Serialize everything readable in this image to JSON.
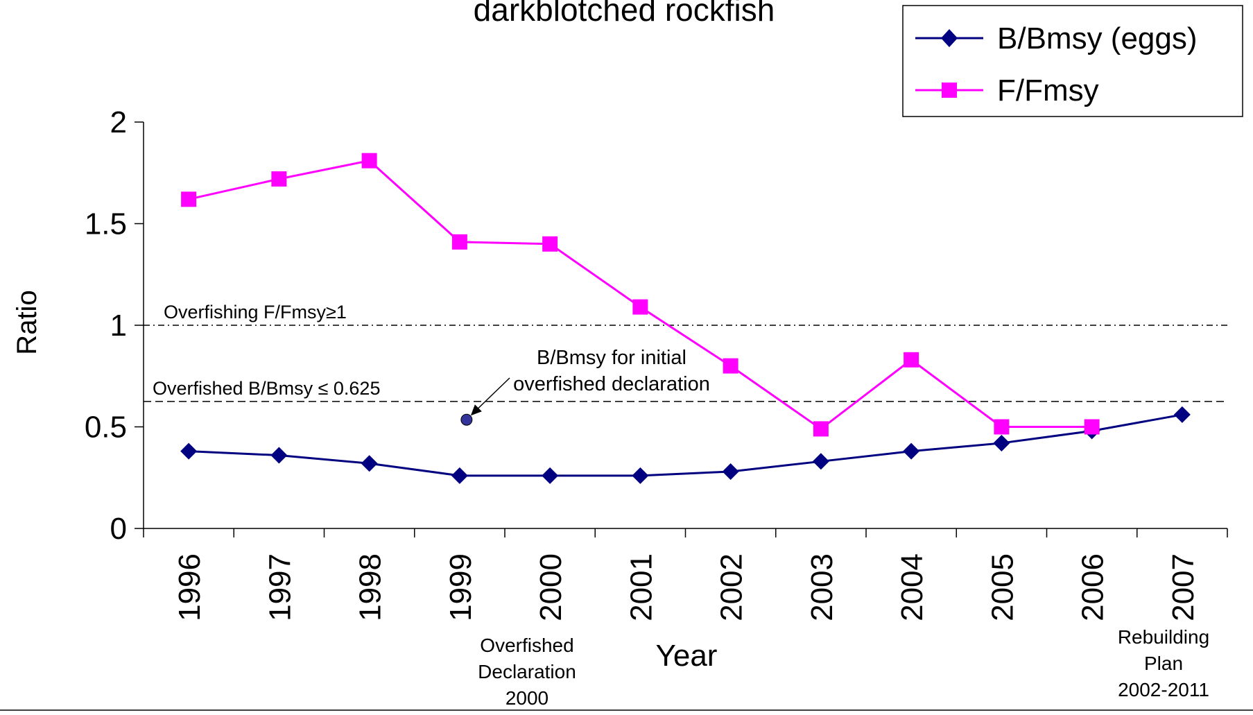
{
  "chart_data": {
    "type": "line",
    "title": "darkblotched rockfish",
    "xlabel": "Year",
    "ylabel": "Ratio",
    "ylim": [
      0,
      2
    ],
    "yticks": [
      0,
      0.5,
      1,
      1.5,
      2
    ],
    "ytick_labels": [
      "0",
      "0.5",
      "1",
      "1.5",
      "2"
    ],
    "categories": [
      "1996",
      "1997",
      "1998",
      "1999",
      "2000",
      "2001",
      "2002",
      "2003",
      "2004",
      "2005",
      "2006",
      "2007"
    ],
    "legend_position": "top-right",
    "grid": false,
    "series": [
      {
        "name": "B/Bmsy (eggs)",
        "color": "#000080",
        "marker": "diamond",
        "values": [
          0.38,
          0.36,
          0.32,
          0.26,
          0.26,
          0.26,
          0.28,
          0.33,
          0.38,
          0.42,
          0.48,
          0.56
        ]
      },
      {
        "name": "F/Fmsy",
        "color": "#ff00ff",
        "marker": "square",
        "values": [
          1.62,
          1.72,
          1.81,
          1.41,
          1.4,
          1.09,
          0.8,
          0.49,
          0.83,
          0.5,
          0.5,
          null
        ]
      }
    ],
    "reference_lines": [
      {
        "label": "Overfishing F/Fmsy≥1",
        "value": 1,
        "style": "dash-dot"
      },
      {
        "label": "Overfished B/Bmsy ≤ 0.625",
        "value": 0.625,
        "style": "dashed"
      }
    ],
    "initial_point": {
      "year": "1999",
      "value": 0.535,
      "color": "#333399",
      "label_lines": [
        "B/Bmsy for initial",
        "overfished declaration"
      ]
    },
    "annotations": [
      {
        "lines": [
          "Overfished",
          "Declaration",
          "2000"
        ],
        "near": "2000"
      },
      {
        "lines": [
          "Rebuilding",
          "Plan",
          "2002-2011"
        ],
        "near": "2007"
      }
    ]
  }
}
